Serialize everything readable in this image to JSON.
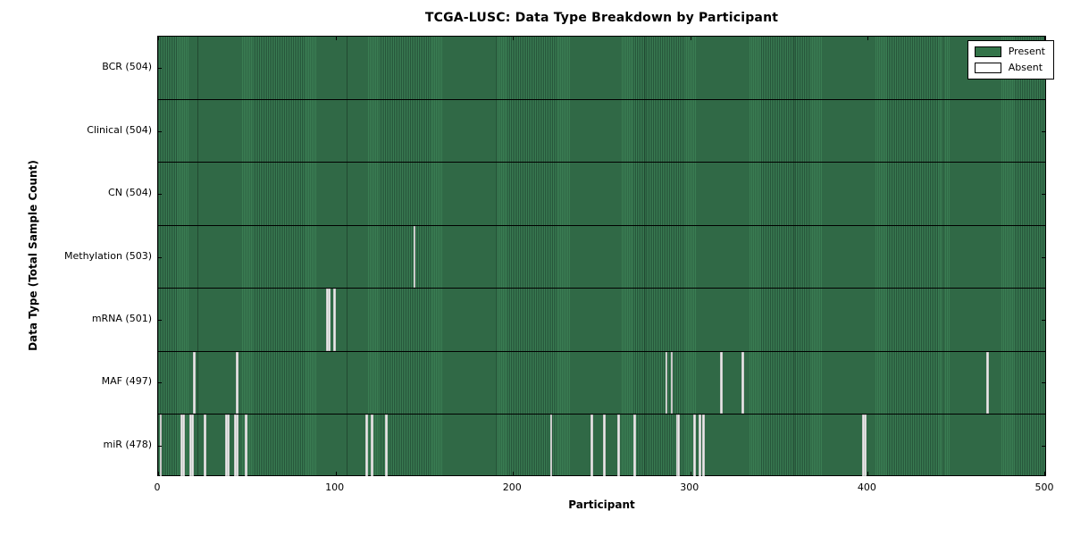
{
  "title": "TCGA-LUSC: Data Type Breakdown by Participant",
  "axes": {
    "xlabel": "Participant",
    "ylabel": "Data Type (Total Sample Count)"
  },
  "legend": {
    "present_label": "Present",
    "absent_label": "Absent"
  },
  "colors": {
    "present_fill": "#337449",
    "present_stripe_light": "#3a7d53",
    "present_stripe_dark": "#26553a",
    "absent_fill": "#e9e9e9",
    "axis": "#000000",
    "background": "#ffffff"
  },
  "chart_data": {
    "type": "heatmap",
    "title": "TCGA-LUSC: Data Type Breakdown by Participant",
    "xlabel": "Participant",
    "ylabel": "Data Type (Total Sample Count)",
    "legend_entries": [
      "Present",
      "Absent"
    ],
    "legend_position": "upper right",
    "x_ticks": [
      0,
      100,
      200,
      300,
      400,
      500
    ],
    "xlim": [
      0,
      501
    ],
    "n_participants": 501,
    "grid": false,
    "rows": [
      {
        "label": "BCR (504)",
        "data_type": "BCR",
        "total_sample_count": 504,
        "absent_participants": []
      },
      {
        "label": "Clinical (504)",
        "data_type": "Clinical",
        "total_sample_count": 504,
        "absent_participants": []
      },
      {
        "label": "CN (504)",
        "data_type": "CN",
        "total_sample_count": 504,
        "absent_participants": []
      },
      {
        "label": "Methylation (503)",
        "data_type": "Methylation",
        "total_sample_count": 503,
        "absent_participants": [
          144
        ]
      },
      {
        "label": "mRNA (501)",
        "data_type": "mRNA",
        "total_sample_count": 501,
        "absent_participants": [
          95,
          96,
          99
        ]
      },
      {
        "label": "MAF (497)",
        "data_type": "MAF",
        "total_sample_count": 497,
        "absent_participants": [
          20,
          44,
          286,
          289,
          317,
          329,
          467
        ]
      },
      {
        "label": "miR (478)",
        "data_type": "miR",
        "total_sample_count": 478,
        "absent_participants": [
          1,
          13,
          14,
          18,
          19,
          26,
          38,
          39,
          43,
          44,
          49,
          117,
          120,
          128,
          221,
          244,
          251,
          259,
          268,
          292,
          293,
          302,
          305,
          307,
          397,
          398
        ]
      }
    ]
  }
}
